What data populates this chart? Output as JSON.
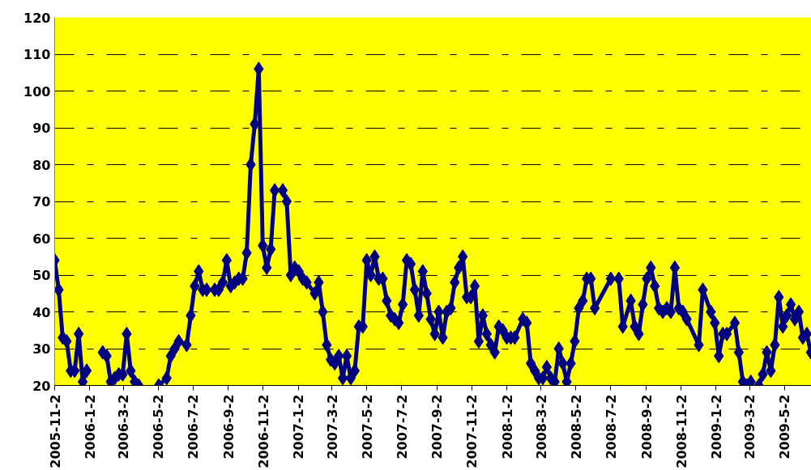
{
  "chart_data": {
    "type": "line",
    "color": "#000080",
    "marker": "diamond",
    "grid": "y",
    "x": [
      "2005-11-02",
      "2005-11-09",
      "2005-11-16",
      "2005-11-23",
      "2005-11-30",
      "2005-12-07",
      "2005-12-14",
      "2005-12-21",
      "2005-12-28",
      "2006-01-04",
      "2006-01-25",
      "2006-02-01",
      "2006-02-08",
      "2006-02-15",
      "2006-02-22",
      "2006-03-01",
      "2006-03-08",
      "2006-03-15",
      "2006-03-22",
      "2006-03-29",
      "2006-04-05",
      "2006-05-03",
      "2006-05-17",
      "2006-05-24",
      "2006-05-31",
      "2006-06-07",
      "2006-06-21",
      "2006-06-28",
      "2006-07-05",
      "2006-07-12",
      "2006-07-19",
      "2006-07-26",
      "2006-08-09",
      "2006-08-16",
      "2006-08-23",
      "2006-08-30",
      "2006-09-06",
      "2006-09-13",
      "2006-09-20",
      "2006-09-27",
      "2006-10-04",
      "2006-10-11",
      "2006-10-18",
      "2006-10-25",
      "2006-11-01",
      "2006-11-08",
      "2006-11-15",
      "2006-11-22",
      "2006-12-06",
      "2006-12-13",
      "2006-12-20",
      "2006-12-27",
      "2007-01-03",
      "2007-01-10",
      "2007-01-17",
      "2007-01-31",
      "2007-02-07",
      "2007-02-14",
      "2007-02-21",
      "2007-02-28",
      "2007-03-07",
      "2007-03-14",
      "2007-03-21",
      "2007-03-28",
      "2007-04-04",
      "2007-04-11",
      "2007-04-18",
      "2007-04-25",
      "2007-05-02",
      "2007-05-09",
      "2007-05-16",
      "2007-05-23",
      "2007-05-30",
      "2007-06-06",
      "2007-06-13",
      "2007-06-20",
      "2007-06-27",
      "2007-07-04",
      "2007-07-11",
      "2007-07-18",
      "2007-07-25",
      "2007-08-01",
      "2007-08-08",
      "2007-08-15",
      "2007-08-22",
      "2007-08-29",
      "2007-09-05",
      "2007-09-12",
      "2007-09-19",
      "2007-09-26",
      "2007-10-03",
      "2007-10-10",
      "2007-10-17",
      "2007-10-24",
      "2007-10-31",
      "2007-11-07",
      "2007-11-14",
      "2007-11-21",
      "2007-11-28",
      "2007-12-05",
      "2007-12-12",
      "2007-12-19",
      "2007-12-26",
      "2008-01-02",
      "2008-01-09",
      "2008-01-16",
      "2008-01-30",
      "2008-02-06",
      "2008-02-13",
      "2008-02-20",
      "2008-02-27",
      "2008-03-05",
      "2008-03-12",
      "2008-03-19",
      "2008-03-26",
      "2008-04-02",
      "2008-04-09",
      "2008-04-16",
      "2008-04-23",
      "2008-04-30",
      "2008-05-07",
      "2008-05-14",
      "2008-05-21",
      "2008-05-28",
      "2008-06-04",
      "2008-07-02",
      "2008-07-16",
      "2008-07-23",
      "2008-08-06",
      "2008-08-13",
      "2008-08-20",
      "2008-08-27",
      "2008-09-03",
      "2008-09-10",
      "2008-09-17",
      "2008-09-24",
      "2008-10-01",
      "2008-10-08",
      "2008-10-15",
      "2008-10-22",
      "2008-10-29",
      "2008-11-05",
      "2008-11-12",
      "2008-12-03",
      "2008-12-10",
      "2008-12-24",
      "2008-12-31",
      "2009-01-07",
      "2009-01-14",
      "2009-01-21",
      "2009-02-04",
      "2009-02-11",
      "2009-02-18",
      "2009-02-25",
      "2009-03-04",
      "2009-03-11",
      "2009-03-18",
      "2009-03-25",
      "2009-04-01",
      "2009-04-08",
      "2009-04-15",
      "2009-04-22",
      "2009-04-29",
      "2009-05-06",
      "2009-05-13",
      "2009-05-20",
      "2009-05-27",
      "2009-06-03",
      "2009-06-10",
      "2009-06-17"
    ],
    "values": [
      54,
      46,
      33,
      32,
      24,
      24,
      34,
      21,
      24,
      null,
      29,
      28,
      21,
      22,
      23,
      23,
      34,
      24,
      21,
      20,
      null,
      20,
      22,
      28,
      30,
      32,
      31,
      39,
      47,
      51,
      46,
      46,
      46,
      46,
      48,
      54,
      47,
      48,
      49,
      49,
      56,
      80,
      91,
      106,
      58,
      52,
      57,
      73,
      73,
      70,
      50,
      52,
      51,
      49,
      48,
      45,
      48,
      40,
      31,
      27,
      26,
      28,
      22,
      28,
      22,
      24,
      36,
      36,
      54,
      50,
      55,
      49,
      49,
      43,
      39,
      38,
      37,
      42,
      54,
      53,
      46,
      39,
      51,
      45,
      38,
      34,
      40,
      33,
      40,
      41,
      48,
      52,
      55,
      44,
      44,
      47,
      32,
      39,
      34,
      31,
      29,
      36,
      35,
      33,
      33,
      33,
      38,
      37,
      26,
      24,
      22,
      22,
      25,
      22,
      21,
      30,
      26,
      21,
      26,
      32,
      41,
      43,
      49,
      49,
      41,
      49,
      49,
      36,
      43,
      36,
      34,
      42,
      49,
      52,
      47,
      41,
      40,
      41,
      40,
      52,
      41,
      40,
      38,
      31,
      46,
      40,
      37,
      28,
      34,
      34,
      37,
      29,
      21,
      20,
      21,
      null,
      20,
      23,
      29,
      24,
      31,
      44,
      36,
      39,
      42,
      38,
      40,
      33,
      34,
      29
    ],
    "xlim": [
      "2005-11-02",
      "2009-06-18"
    ],
    "ylim": [
      20,
      120
    ],
    "yticks": [
      20,
      30,
      40,
      50,
      60,
      70,
      80,
      90,
      100,
      110,
      120
    ],
    "xticks": [
      {
        "value": "2005-11-02",
        "label": "2005-11-2"
      },
      {
        "value": "2006-01-02",
        "label": "2006-1-2"
      },
      {
        "value": "2006-03-02",
        "label": "2006-3-2"
      },
      {
        "value": "2006-05-02",
        "label": "2006-5-2"
      },
      {
        "value": "2006-07-02",
        "label": "2006-7-2"
      },
      {
        "value": "2006-09-02",
        "label": "2006-9-2"
      },
      {
        "value": "2006-11-02",
        "label": "2006-11-2"
      },
      {
        "value": "2007-01-02",
        "label": "2007-1-2"
      },
      {
        "value": "2007-03-02",
        "label": "2007-3-2"
      },
      {
        "value": "2007-05-02",
        "label": "2007-5-2"
      },
      {
        "value": "2007-07-02",
        "label": "2007-7-2"
      },
      {
        "value": "2007-09-02",
        "label": "2007-9-2"
      },
      {
        "value": "2007-11-02",
        "label": "2007-11-2"
      },
      {
        "value": "2008-01-02",
        "label": "2008-1-2"
      },
      {
        "value": "2008-03-02",
        "label": "2008-3-2"
      },
      {
        "value": "2008-05-02",
        "label": "2008-5-2"
      },
      {
        "value": "2008-07-02",
        "label": "2008-7-2"
      },
      {
        "value": "2008-09-02",
        "label": "2008-9-2"
      },
      {
        "value": "2008-11-02",
        "label": "2008-11-2"
      },
      {
        "value": "2009-01-02",
        "label": "2009-1-2"
      },
      {
        "value": "2009-03-02",
        "label": "2009-3-2"
      },
      {
        "value": "2009-05-02",
        "label": "2009-5-2"
      }
    ]
  }
}
